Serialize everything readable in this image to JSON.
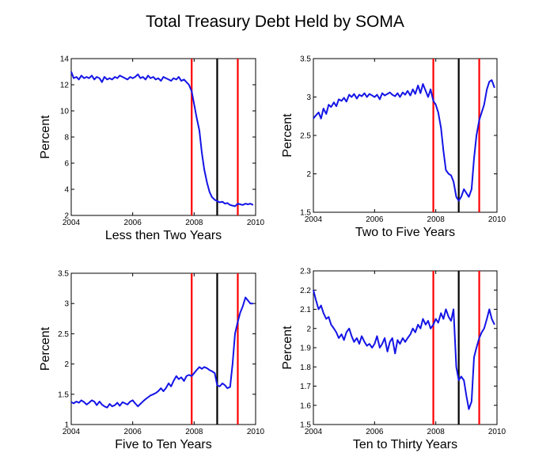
{
  "title": "Total Treasury Debt Held by SOMA",
  "colors": {
    "series": "#1414e6",
    "recession_line": "#ff0000",
    "event_line": "#000000",
    "axis": "#000000"
  },
  "chart_data": [
    {
      "type": "line",
      "title": "Less then Two Years",
      "xlabel": "Less then Two Years",
      "ylabel": "Percent",
      "xlim": [
        2004,
        2010
      ],
      "ylim": [
        2,
        14
      ],
      "xticks": [
        2004,
        2006,
        2008,
        2010
      ],
      "yticks": [
        2,
        4,
        6,
        8,
        10,
        12,
        14
      ],
      "vlines": [
        {
          "x": 2007.92,
          "color": "red"
        },
        {
          "x": 2008.75,
          "color": "black"
        },
        {
          "x": 2009.42,
          "color": "red"
        }
      ],
      "series": [
        {
          "name": "Less then Two Years",
          "x": [
            2004.0,
            2004.08,
            2004.17,
            2004.25,
            2004.33,
            2004.42,
            2004.5,
            2004.58,
            2004.67,
            2004.75,
            2004.83,
            2004.92,
            2005.0,
            2005.08,
            2005.17,
            2005.25,
            2005.33,
            2005.42,
            2005.5,
            2005.58,
            2005.67,
            2005.75,
            2005.83,
            2005.92,
            2006.0,
            2006.08,
            2006.17,
            2006.25,
            2006.33,
            2006.42,
            2006.5,
            2006.58,
            2006.67,
            2006.75,
            2006.83,
            2006.92,
            2007.0,
            2007.08,
            2007.17,
            2007.25,
            2007.33,
            2007.42,
            2007.5,
            2007.58,
            2007.67,
            2007.75,
            2007.83,
            2007.92,
            2008.0,
            2008.08,
            2008.17,
            2008.25,
            2008.33,
            2008.42,
            2008.5,
            2008.58,
            2008.67,
            2008.75,
            2008.83,
            2008.92,
            2009.0,
            2009.08,
            2009.17,
            2009.25,
            2009.33,
            2009.42,
            2009.5,
            2009.58,
            2009.67,
            2009.75,
            2009.83,
            2009.92
          ],
          "values": [
            13.0,
            12.5,
            12.6,
            12.4,
            12.7,
            12.5,
            12.6,
            12.5,
            12.7,
            12.4,
            12.6,
            12.5,
            12.2,
            12.6,
            12.4,
            12.5,
            12.4,
            12.6,
            12.5,
            12.7,
            12.6,
            12.5,
            12.4,
            12.6,
            12.5,
            12.6,
            12.8,
            12.5,
            12.6,
            12.4,
            12.7,
            12.5,
            12.6,
            12.4,
            12.5,
            12.3,
            12.6,
            12.5,
            12.4,
            12.3,
            12.5,
            12.4,
            12.6,
            12.3,
            12.4,
            12.2,
            12.0,
            11.5,
            10.5,
            9.5,
            8.5,
            6.8,
            5.5,
            4.5,
            3.8,
            3.4,
            3.2,
            3.1,
            3.0,
            3.05,
            2.9,
            2.95,
            2.8,
            2.75,
            2.7,
            2.9,
            2.85,
            2.8,
            2.9,
            2.85,
            2.9,
            2.8
          ]
        }
      ]
    },
    {
      "type": "line",
      "title": "Two to Five Years",
      "xlabel": "Two to Five Years",
      "ylabel": "Percent",
      "xlim": [
        2004,
        2010
      ],
      "ylim": [
        1.5,
        3.5
      ],
      "xticks": [
        2004,
        2006,
        2008,
        2010
      ],
      "yticks": [
        1.5,
        2,
        2.5,
        3,
        3.5
      ],
      "vlines": [
        {
          "x": 2007.92,
          "color": "red"
        },
        {
          "x": 2008.75,
          "color": "black"
        },
        {
          "x": 2009.42,
          "color": "red"
        }
      ],
      "series": [
        {
          "name": "Two to Five Years",
          "x": [
            2004.0,
            2004.08,
            2004.17,
            2004.25,
            2004.33,
            2004.42,
            2004.5,
            2004.58,
            2004.67,
            2004.75,
            2004.83,
            2004.92,
            2005.0,
            2005.08,
            2005.17,
            2005.25,
            2005.33,
            2005.42,
            2005.5,
            2005.58,
            2005.67,
            2005.75,
            2005.83,
            2005.92,
            2006.0,
            2006.08,
            2006.17,
            2006.25,
            2006.33,
            2006.42,
            2006.5,
            2006.58,
            2006.67,
            2006.75,
            2006.83,
            2006.92,
            2007.0,
            2007.08,
            2007.17,
            2007.25,
            2007.33,
            2007.42,
            2007.5,
            2007.58,
            2007.67,
            2007.75,
            2007.83,
            2007.92,
            2008.0,
            2008.08,
            2008.17,
            2008.25,
            2008.33,
            2008.42,
            2008.5,
            2008.58,
            2008.67,
            2008.75,
            2008.83,
            2008.92,
            2009.0,
            2009.08,
            2009.17,
            2009.25,
            2009.33,
            2009.42,
            2009.5,
            2009.58,
            2009.67,
            2009.75,
            2009.83,
            2009.92
          ],
          "values": [
            2.72,
            2.76,
            2.8,
            2.72,
            2.85,
            2.78,
            2.9,
            2.87,
            2.93,
            2.88,
            2.97,
            2.95,
            2.99,
            2.94,
            3.03,
            3.0,
            3.04,
            2.98,
            3.03,
            3.01,
            3.05,
            3.0,
            3.04,
            3.02,
            3.0,
            3.03,
            2.97,
            3.05,
            3.02,
            3.04,
            3.06,
            3.03,
            3.01,
            3.05,
            3.0,
            3.06,
            3.03,
            3.08,
            3.02,
            3.1,
            3.04,
            3.15,
            3.05,
            3.17,
            3.08,
            3.0,
            3.1,
            2.95,
            2.9,
            2.8,
            2.6,
            2.3,
            2.05,
            2.0,
            1.98,
            1.9,
            1.7,
            1.65,
            1.7,
            1.8,
            1.75,
            1.7,
            1.8,
            2.2,
            2.5,
            2.7,
            2.8,
            2.9,
            3.1,
            3.2,
            3.22,
            3.12
          ]
        }
      ]
    },
    {
      "type": "line",
      "title": "Five to Ten Years",
      "xlabel": "Five to Ten Years",
      "ylabel": "Percent",
      "xlim": [
        2004,
        2010
      ],
      "ylim": [
        1,
        3.5
      ],
      "xticks": [
        2004,
        2006,
        2008,
        2010
      ],
      "yticks": [
        1,
        1.5,
        2,
        2.5,
        3,
        3.5
      ],
      "vlines": [
        {
          "x": 2007.92,
          "color": "red"
        },
        {
          "x": 2008.75,
          "color": "black"
        },
        {
          "x": 2009.42,
          "color": "red"
        }
      ],
      "series": [
        {
          "name": "Five to Ten Years",
          "x": [
            2004.0,
            2004.08,
            2004.17,
            2004.25,
            2004.33,
            2004.42,
            2004.5,
            2004.58,
            2004.67,
            2004.75,
            2004.83,
            2004.92,
            2005.0,
            2005.08,
            2005.17,
            2005.25,
            2005.33,
            2005.42,
            2005.5,
            2005.58,
            2005.67,
            2005.75,
            2005.83,
            2005.92,
            2006.0,
            2006.08,
            2006.17,
            2006.25,
            2006.33,
            2006.42,
            2006.5,
            2006.58,
            2006.67,
            2006.75,
            2006.83,
            2006.92,
            2007.0,
            2007.08,
            2007.17,
            2007.25,
            2007.33,
            2007.42,
            2007.5,
            2007.58,
            2007.67,
            2007.75,
            2007.83,
            2007.92,
            2008.0,
            2008.08,
            2008.17,
            2008.25,
            2008.33,
            2008.42,
            2008.5,
            2008.58,
            2008.67,
            2008.75,
            2008.83,
            2008.92,
            2009.0,
            2009.08,
            2009.17,
            2009.25,
            2009.33,
            2009.42,
            2009.5,
            2009.58,
            2009.67,
            2009.75,
            2009.83,
            2009.92
          ],
          "values": [
            1.37,
            1.35,
            1.38,
            1.36,
            1.4,
            1.37,
            1.33,
            1.36,
            1.4,
            1.38,
            1.32,
            1.38,
            1.33,
            1.3,
            1.28,
            1.34,
            1.3,
            1.32,
            1.36,
            1.31,
            1.37,
            1.35,
            1.33,
            1.38,
            1.4,
            1.35,
            1.3,
            1.34,
            1.38,
            1.42,
            1.45,
            1.48,
            1.5,
            1.52,
            1.55,
            1.6,
            1.55,
            1.6,
            1.68,
            1.63,
            1.72,
            1.8,
            1.75,
            1.78,
            1.72,
            1.8,
            1.82,
            1.8,
            1.85,
            1.9,
            1.95,
            1.92,
            1.95,
            1.93,
            1.9,
            1.88,
            1.85,
            1.65,
            1.63,
            1.68,
            1.65,
            1.6,
            1.62,
            2.0,
            2.5,
            2.7,
            2.85,
            2.95,
            3.1,
            3.05,
            3.0,
            3.0
          ]
        }
      ]
    },
    {
      "type": "line",
      "title": "Ten to Thirty Years",
      "xlabel": "Ten to Thirty Years",
      "ylabel": "Percent",
      "xlim": [
        2004,
        2010
      ],
      "ylim": [
        1.5,
        2.3
      ],
      "xticks": [
        2004,
        2006,
        2008,
        2010
      ],
      "yticks": [
        1.5,
        1.6,
        1.7,
        1.8,
        1.9,
        2,
        2.1,
        2.2,
        2.3
      ],
      "vlines": [
        {
          "x": 2007.92,
          "color": "red"
        },
        {
          "x": 2008.75,
          "color": "black"
        },
        {
          "x": 2009.42,
          "color": "red"
        }
      ],
      "series": [
        {
          "name": "Ten to Thirty Years",
          "x": [
            2004.0,
            2004.08,
            2004.17,
            2004.25,
            2004.33,
            2004.42,
            2004.5,
            2004.58,
            2004.67,
            2004.75,
            2004.83,
            2004.92,
            2005.0,
            2005.08,
            2005.17,
            2005.25,
            2005.33,
            2005.42,
            2005.5,
            2005.58,
            2005.67,
            2005.75,
            2005.83,
            2005.92,
            2006.0,
            2006.08,
            2006.17,
            2006.25,
            2006.33,
            2006.42,
            2006.5,
            2006.58,
            2006.67,
            2006.75,
            2006.83,
            2006.92,
            2007.0,
            2007.08,
            2007.17,
            2007.25,
            2007.33,
            2007.42,
            2007.5,
            2007.58,
            2007.67,
            2007.75,
            2007.83,
            2007.92,
            2008.0,
            2008.08,
            2008.17,
            2008.25,
            2008.33,
            2008.42,
            2008.5,
            2008.58,
            2008.67,
            2008.75,
            2008.83,
            2008.92,
            2009.0,
            2009.08,
            2009.17,
            2009.25,
            2009.33,
            2009.42,
            2009.5,
            2009.58,
            2009.67,
            2009.75,
            2009.83,
            2009.92
          ],
          "values": [
            2.2,
            2.15,
            2.1,
            2.12,
            2.08,
            2.05,
            2.06,
            2.02,
            2.0,
            1.98,
            1.95,
            1.97,
            1.94,
            1.98,
            2.0,
            1.96,
            1.93,
            1.95,
            1.92,
            1.96,
            1.93,
            1.91,
            1.92,
            1.9,
            1.92,
            1.96,
            1.9,
            1.92,
            1.95,
            1.88,
            1.93,
            1.95,
            1.87,
            1.94,
            1.92,
            1.95,
            1.93,
            1.95,
            1.97,
            2.0,
            1.98,
            2.02,
            2.0,
            2.05,
            2.02,
            2.04,
            2.0,
            2.02,
            2.05,
            2.03,
            2.08,
            2.05,
            2.1,
            2.06,
            2.04,
            2.1,
            1.8,
            1.73,
            1.75,
            1.73,
            1.65,
            1.58,
            1.62,
            1.85,
            1.9,
            1.95,
            1.98,
            2.0,
            2.05,
            2.1,
            2.05,
            2.02
          ]
        }
      ]
    }
  ]
}
